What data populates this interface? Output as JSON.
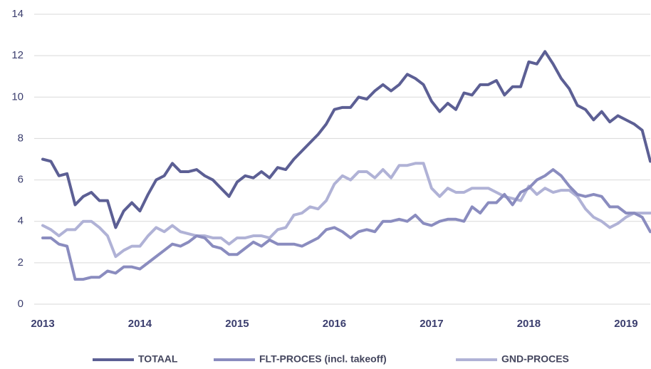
{
  "chart_data": {
    "type": "line",
    "categories": [
      "2013",
      null,
      null,
      null,
      null,
      null,
      null,
      null,
      null,
      null,
      null,
      null,
      "2014",
      null,
      null,
      null,
      null,
      null,
      null,
      null,
      null,
      null,
      null,
      null,
      "2015",
      null,
      null,
      null,
      null,
      null,
      null,
      null,
      null,
      null,
      null,
      null,
      "2016",
      null,
      null,
      null,
      null,
      null,
      null,
      null,
      null,
      null,
      null,
      null,
      "2017",
      null,
      null,
      null,
      null,
      null,
      null,
      null,
      null,
      null,
      null,
      null,
      "2018",
      null,
      null,
      null,
      null,
      null,
      null,
      null,
      null,
      null,
      null,
      null,
      "2019",
      null,
      null,
      null
    ],
    "series": [
      {
        "name": "TOTAAL",
        "color": "#5c5f94",
        "values": [
          7.0,
          6.9,
          6.2,
          6.3,
          4.8,
          5.2,
          5.4,
          5.0,
          5.0,
          3.7,
          4.5,
          4.9,
          4.5,
          5.3,
          6.0,
          6.2,
          6.8,
          6.4,
          6.4,
          6.5,
          6.2,
          6.0,
          5.6,
          5.2,
          5.9,
          6.2,
          6.1,
          6.4,
          6.1,
          6.6,
          6.5,
          7.0,
          7.4,
          7.8,
          8.2,
          8.7,
          9.4,
          9.5,
          9.5,
          10.0,
          9.9,
          10.3,
          10.6,
          10.3,
          10.6,
          11.1,
          10.9,
          10.6,
          9.8,
          9.3,
          9.7,
          9.4,
          10.2,
          10.1,
          10.6,
          10.6,
          10.8,
          10.1,
          10.5,
          10.5,
          11.7,
          11.6,
          12.2,
          11.6,
          10.9,
          10.4,
          9.6,
          9.4,
          8.9,
          9.3,
          8.8,
          9.1,
          8.9,
          8.7,
          8.4,
          6.9
        ]
      },
      {
        "name": "FLT-PROCES (incl. takeoff)",
        "color": "#8a8cbf",
        "values": [
          3.2,
          3.2,
          2.9,
          2.8,
          1.2,
          1.2,
          1.3,
          1.3,
          1.6,
          1.5,
          1.8,
          1.8,
          1.7,
          2.0,
          2.3,
          2.6,
          2.9,
          2.8,
          3.0,
          3.3,
          3.2,
          2.8,
          2.7,
          2.4,
          2.4,
          2.7,
          3.0,
          2.8,
          3.1,
          2.9,
          2.9,
          2.9,
          2.8,
          3.0,
          3.2,
          3.6,
          3.7,
          3.5,
          3.2,
          3.5,
          3.6,
          3.5,
          4.0,
          4.0,
          4.1,
          4.0,
          4.3,
          3.9,
          3.8,
          4.0,
          4.1,
          4.1,
          4.0,
          4.7,
          4.4,
          4.9,
          4.9,
          5.3,
          4.8,
          5.4,
          5.6,
          6.0,
          6.2,
          6.5,
          6.2,
          5.7,
          5.3,
          5.2,
          5.3,
          5.2,
          4.7,
          4.7,
          4.4,
          4.4,
          4.2,
          3.5
        ]
      },
      {
        "name": "GND-PROCES",
        "color": "#b0b2d6",
        "values": [
          3.8,
          3.6,
          3.3,
          3.6,
          3.6,
          4.0,
          4.0,
          3.7,
          3.3,
          2.3,
          2.6,
          2.8,
          2.8,
          3.3,
          3.7,
          3.5,
          3.8,
          3.5,
          3.4,
          3.3,
          3.3,
          3.2,
          3.2,
          2.9,
          3.2,
          3.2,
          3.3,
          3.3,
          3.2,
          3.6,
          3.7,
          4.3,
          4.4,
          4.7,
          4.6,
          5.0,
          5.8,
          6.2,
          6.0,
          6.4,
          6.4,
          6.1,
          6.5,
          6.1,
          6.7,
          6.7,
          6.8,
          6.8,
          5.6,
          5.2,
          5.6,
          5.4,
          5.4,
          5.6,
          5.6,
          5.6,
          5.4,
          5.2,
          5.1,
          5.0,
          5.7,
          5.3,
          5.6,
          5.4,
          5.5,
          5.5,
          5.2,
          4.6,
          4.2,
          4.0,
          3.7,
          3.9,
          4.2,
          4.4,
          4.4,
          4.4
        ]
      }
    ],
    "ylim": [
      0,
      14
    ],
    "yticks": [
      0,
      2,
      4,
      6,
      8,
      10,
      12,
      14
    ],
    "grid": true,
    "legend": "bottom"
  }
}
